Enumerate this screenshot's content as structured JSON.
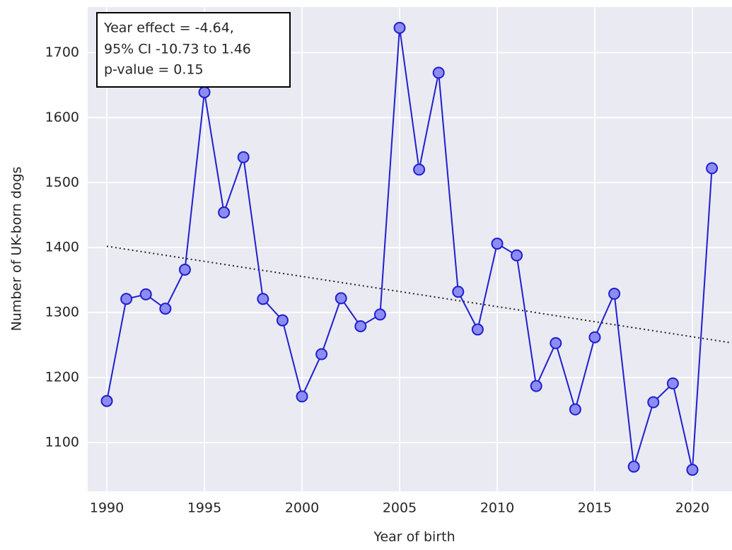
{
  "chart_data": {
    "type": "line",
    "xlabel": "Year of birth",
    "ylabel": "Number of UK-born dogs",
    "annotation": [
      "Year effect = -4.64,",
      "95% CI -10.73 to 1.46",
      "p-value = 0.15"
    ],
    "x": [
      1990,
      1991,
      1992,
      1993,
      1994,
      1995,
      1996,
      1997,
      1998,
      1999,
      2000,
      2001,
      2002,
      2003,
      2004,
      2005,
      2006,
      2007,
      2008,
      2009,
      2010,
      2011,
      2012,
      2013,
      2014,
      2015,
      2016,
      2017,
      2018,
      2019,
      2020,
      2021
    ],
    "series": [
      {
        "name": "UK-born dogs",
        "color": "#1f1fcf",
        "marker_fill": "#8c8cf2",
        "values": [
          1164,
          1321,
          1328,
          1306,
          1366,
          1639,
          1454,
          1539,
          1321,
          1288,
          1171,
          1236,
          1322,
          1279,
          1297,
          1738,
          1520,
          1669,
          1332,
          1274,
          1406,
          1388,
          1187,
          1253,
          1151,
          1262,
          1329,
          1063,
          1162,
          1191,
          1058,
          1522
        ]
      }
    ],
    "trendline": {
      "x": [
        1990,
        2022
      ],
      "values": [
        1402,
        1253.5
      ],
      "color": "#262626"
    },
    "xlim": [
      1989.02,
      2022.03
    ],
    "ylim": [
      1025,
      1770
    ],
    "xticks": [
      1990,
      1995,
      2000,
      2005,
      2010,
      2015,
      2020
    ],
    "yticks": [
      1100,
      1200,
      1300,
      1400,
      1500,
      1600,
      1700
    ],
    "grid": true
  }
}
